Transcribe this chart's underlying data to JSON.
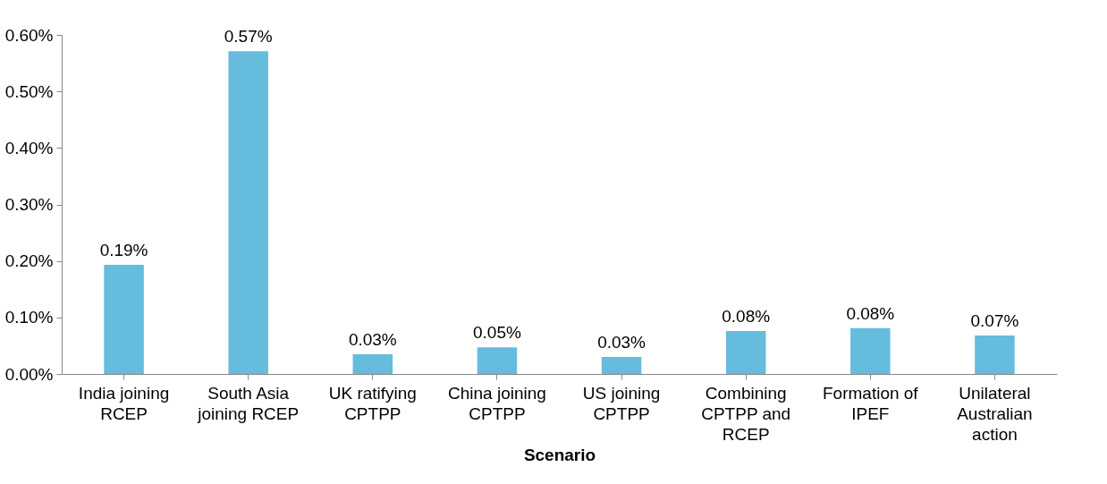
{
  "chart_data": {
    "type": "bar",
    "xlabel": "Scenario",
    "categories": [
      "India joining RCEP",
      "South Asia joining RCEP",
      "UK ratifying CPTPP",
      "China joining CPTPP",
      "US joining CPTPP",
      "Combining CPTPP and RCEP",
      "Formation of IPEF",
      "Unilateral Australian action"
    ],
    "values": [
      0.193,
      0.571,
      0.035,
      0.047,
      0.03,
      0.076,
      0.081,
      0.068
    ],
    "value_labels": [
      "0.19%",
      "0.57%",
      "0.03%",
      "0.05%",
      "0.03%",
      "0.08%",
      "0.08%",
      "0.07%"
    ],
    "color": "#65bcdc",
    "ylim": [
      0,
      0.6
    ],
    "yticks": [
      {
        "value": 0,
        "label": "0.00%"
      },
      {
        "value": 0.1,
        "label": "0.10%"
      },
      {
        "value": 0.2,
        "label": "0.20%"
      },
      {
        "value": 0.3,
        "label": "0.30%"
      },
      {
        "value": 0.4,
        "label": "0.40%"
      },
      {
        "value": 0.5,
        "label": "0.50%"
      },
      {
        "value": 0.6,
        "label": "0.60%"
      }
    ],
    "grid": false
  }
}
